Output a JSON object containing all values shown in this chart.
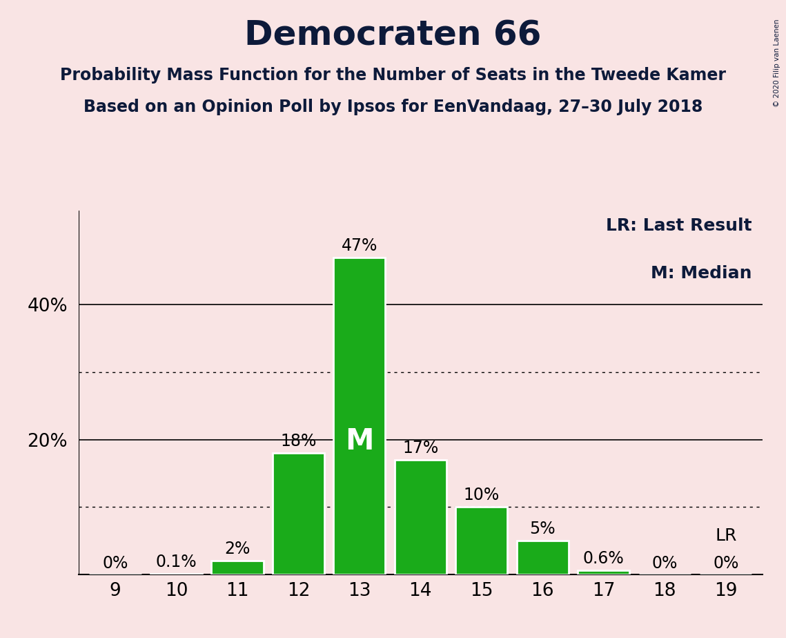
{
  "title": "Democraten 66",
  "subtitle1": "Probability Mass Function for the Number of Seats in the Tweede Kamer",
  "subtitle2": "Based on an Opinion Poll by Ipsos for EenVandaag, 27–30 July 2018",
  "copyright": "© 2020 Filip van Laenen",
  "seats": [
    9,
    10,
    11,
    12,
    13,
    14,
    15,
    16,
    17,
    18,
    19
  ],
  "probabilities": [
    0.0,
    0.1,
    2.0,
    18.0,
    47.0,
    17.0,
    10.0,
    5.0,
    0.6,
    0.0,
    0.0
  ],
  "labels": [
    "0%",
    "0.1%",
    "2%",
    "18%",
    "47%",
    "17%",
    "10%",
    "5%",
    "0.6%",
    "0%",
    "0%"
  ],
  "bar_color": "#1aab1a",
  "background_color": "#f9e4e4",
  "median_seat": 13,
  "lr_seat": 19,
  "legend_lr": "LR: Last Result",
  "legend_m": "M: Median",
  "dotted_grid_at": [
    10,
    30
  ],
  "solid_grid_at": [
    20,
    40
  ],
  "ylim": [
    0,
    54
  ],
  "bar_width": 0.85,
  "figsize": [
    11.39,
    9.24
  ],
  "dpi": 100,
  "title_fontsize": 36,
  "subtitle_fontsize": 17,
  "label_fontsize": 17,
  "tick_fontsize": 19,
  "legend_fontsize": 18,
  "m_fontsize": 30,
  "lr_label_fontsize": 18
}
